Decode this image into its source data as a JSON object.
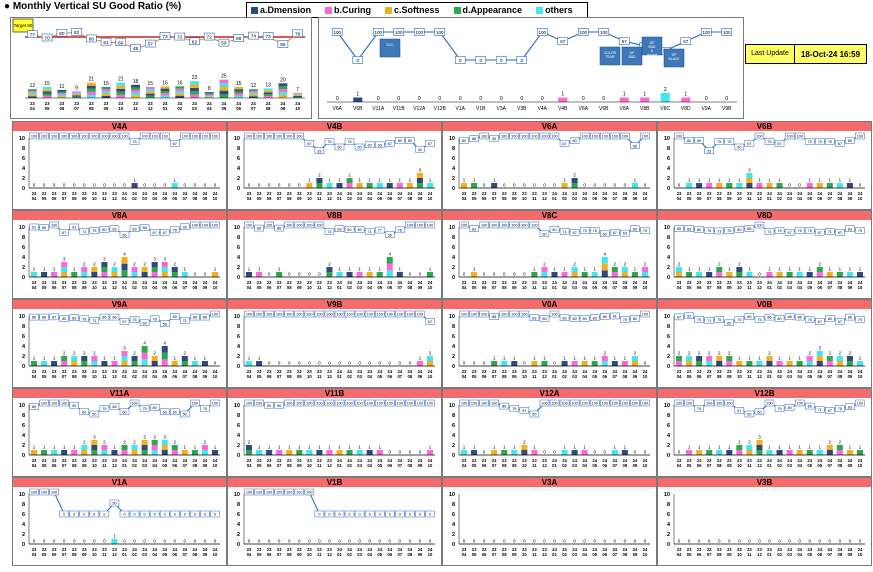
{
  "title": "Monthly Vertical SU Good Ratio (%)",
  "legend": [
    {
      "label": "a.Dmension",
      "color": "#2e4a7f"
    },
    {
      "label": "b.Curing",
      "color": "#ff66d9"
    },
    {
      "label": "c.Softness",
      "color": "#f2b01e"
    },
    {
      "label": "d.Appearance",
      "color": "#2aa84a"
    },
    {
      "label": "others",
      "color": "#3ee8ee"
    }
  ],
  "target_label": "Target 80",
  "badge": {
    "top": "24",
    "bottom": "10"
  },
  "last_update": {
    "label": "Last Update",
    "value": "18-Oct-24 16:59"
  },
  "colors": {
    "line": "#2468c8",
    "target": "#d02020",
    "header": "#f56b6b"
  },
  "chart_data": {
    "overall": {
      "type": "bar+line",
      "categories": [
        "23-04",
        "23-05",
        "23-06",
        "23-07",
        "23-08",
        "23-09",
        "23-10",
        "23-11",
        "23-12",
        "24-01",
        "24-02",
        "24-03",
        "24-04",
        "24-05",
        "24-06",
        "24-07",
        "24-08",
        "24-09",
        "24-10"
      ],
      "ratio": [
        77,
        70,
        80,
        82,
        68,
        61,
        60,
        48,
        57,
        73,
        72,
        62,
        72,
        59,
        69,
        74,
        73,
        56,
        79
      ],
      "ng_totals": [
        12,
        15,
        11,
        9,
        21,
        15,
        21,
        18,
        15,
        16,
        16,
        23,
        8,
        25,
        15,
        12,
        13,
        20,
        7
      ]
    },
    "current_month": {
      "type": "bar+line",
      "categories": [
        "V6A",
        "V6B",
        "V11A",
        "V11B",
        "V12A",
        "V12B",
        "V1A",
        "V1B",
        "V3A",
        "V3B",
        "V4A",
        "V4B",
        "V6A",
        "V6B",
        "V8A",
        "V8B",
        "V8C",
        "V8D",
        "V9A",
        "V9B"
      ],
      "ratio": [
        100,
        0,
        100,
        100,
        100,
        100,
        0,
        0,
        0,
        0,
        100,
        67,
        100,
        100,
        67,
        50,
        33,
        67,
        100,
        100
      ],
      "ng": [
        0,
        1,
        0,
        0,
        0,
        0,
        0,
        0,
        0,
        0,
        0,
        1,
        0,
        0,
        1,
        1,
        2,
        1,
        0,
        0
      ],
      "callouts": [
        "SCC",
        "COLOR TEAR",
        "DP BAD",
        "DP BAD & ground",
        "DP BLACK"
      ]
    },
    "months": [
      "23-04",
      "23-05",
      "23-06",
      "23-07",
      "23-08",
      "23-09",
      "23-10",
      "23-11",
      "23-12",
      "24-01",
      "24-02",
      "24-03",
      "24-04",
      "24-05",
      "24-06",
      "24-07",
      "24-08",
      "24-09",
      "24-10"
    ],
    "lines": [
      {
        "name": "V4A",
        "ymax": 10,
        "ratio": [
          100,
          100,
          100,
          100,
          100,
          100,
          100,
          100,
          100,
          100,
          75,
          100,
          100,
          100,
          67,
          100,
          100,
          100,
          100
        ],
        "ng": [
          0,
          0,
          0,
          0,
          0,
          0,
          0,
          0,
          0,
          0,
          1,
          0,
          0,
          0,
          1,
          0,
          0,
          0,
          0
        ]
      },
      {
        "name": "V4B",
        "ymax": 10,
        "ratio": [
          100,
          100,
          100,
          100,
          100,
          100,
          67,
          33,
          75,
          50,
          75,
          50,
          60,
          60,
          67,
          80,
          80,
          40,
          67
        ],
        "ng": [
          0,
          0,
          0,
          0,
          0,
          0,
          1,
          2,
          1,
          1,
          2,
          1,
          1,
          1,
          1,
          1,
          1,
          3,
          1
        ]
      },
      {
        "name": "V6A",
        "ymax": 10,
        "ratio": [
          80,
          88,
          100,
          90,
          100,
          100,
          100,
          100,
          100,
          100,
          67,
          80,
          100,
          100,
          100,
          100,
          100,
          56,
          100
        ],
        "ng": [
          1,
          1,
          0,
          1,
          0,
          0,
          0,
          0,
          0,
          0,
          1,
          2,
          0,
          0,
          0,
          0,
          0,
          1,
          0
        ]
      },
      {
        "name": "V6B",
        "ymax": 10,
        "ratio": [
          100,
          80,
          80,
          33,
          75,
          75,
          50,
          67,
          100,
          75,
          67,
          100,
          100,
          75,
          75,
          75,
          67,
          80,
          100
        ],
        "ng": [
          0,
          1,
          1,
          1,
          1,
          1,
          1,
          3,
          1,
          1,
          1,
          0,
          0,
          1,
          1,
          1,
          1,
          1,
          0
        ]
      },
      {
        "name": "V8A",
        "ymax": 10,
        "ratio": [
          91,
          88,
          100,
          67,
          91,
          71,
          75,
          80,
          83,
          56,
          83,
          88,
          67,
          67,
          78,
          92,
          100,
          100,
          100
        ],
        "ng": [
          1,
          1,
          1,
          3,
          1,
          2,
          2,
          3,
          2,
          4,
          2,
          2,
          3,
          3,
          2,
          1,
          0,
          0,
          1
        ]
      },
      {
        "name": "V8B",
        "ymax": 10,
        "ratio": [
          100,
          86,
          100,
          86,
          100,
          100,
          100,
          100,
          71,
          83,
          80,
          80,
          71,
          77,
          56,
          78,
          100,
          100,
          100
        ],
        "ng": [
          1,
          1,
          0,
          1,
          0,
          0,
          0,
          0,
          2,
          1,
          1,
          1,
          1,
          1,
          4,
          1,
          0,
          0,
          1
        ]
      },
      {
        "name": "V8C",
        "ymax": 10,
        "ratio": [
          100,
          83,
          100,
          100,
          100,
          100,
          100,
          100,
          60,
          80,
          71,
          67,
          75,
          75,
          60,
          67,
          63,
          83,
          75
        ],
        "ng": [
          0,
          1,
          0,
          0,
          0,
          0,
          0,
          1,
          2,
          1,
          1,
          2,
          1,
          1,
          4,
          2,
          2,
          1,
          2
        ]
      },
      {
        "name": "V8D",
        "ymax": 10,
        "ratio": [
          85,
          83,
          80,
          75,
          73,
          75,
          80,
          85,
          100,
          71,
          75,
          67,
          75,
          75,
          67,
          71,
          67,
          83,
          75
        ],
        "ng": [
          2,
          1,
          1,
          1,
          2,
          1,
          2,
          1,
          0,
          1,
          1,
          1,
          1,
          1,
          2,
          1,
          1,
          1,
          1
        ]
      },
      {
        "name": "V9A",
        "ymax": 10,
        "ratio": [
          86,
          86,
          87,
          80,
          83,
          78,
          71,
          86,
          86,
          67,
          75,
          60,
          78,
          56,
          89,
          71,
          86,
          86,
          100
        ],
        "ng": [
          1,
          1,
          1,
          2,
          2,
          2,
          2,
          1,
          1,
          3,
          2,
          4,
          2,
          4,
          1,
          2,
          1,
          1,
          0
        ]
      },
      {
        "name": "V9B",
        "ymax": 10,
        "ratio": [
          100,
          100,
          100,
          100,
          100,
          100,
          100,
          100,
          100,
          100,
          100,
          100,
          100,
          100,
          100,
          100,
          100,
          100,
          67
        ],
        "ng": [
          1,
          1,
          0,
          0,
          0,
          0,
          0,
          0,
          0,
          0,
          0,
          0,
          0,
          0,
          0,
          0,
          0,
          1,
          2
        ]
      },
      {
        "name": "V0A",
        "ymax": 10,
        "ratio": [
          100,
          100,
          100,
          88,
          100,
          100,
          100,
          83,
          80,
          100,
          83,
          80,
          80,
          83,
          89,
          91,
          75,
          80,
          100
        ],
        "ng": [
          0,
          0,
          0,
          1,
          1,
          1,
          0,
          1,
          1,
          0,
          1,
          1,
          1,
          1,
          2,
          1,
          1,
          2,
          0
        ]
      },
      {
        "name": "V0B",
        "ymax": 10,
        "ratio": [
          87,
          92,
          75,
          71,
          75,
          60,
          75,
          89,
          75,
          86,
          80,
          88,
          86,
          75,
          67,
          80,
          67,
          86,
          75
        ],
        "ng": [
          2,
          2,
          2,
          2,
          2,
          2,
          1,
          1,
          1,
          2,
          1,
          1,
          1,
          2,
          3,
          2,
          2,
          2,
          1
        ]
      },
      {
        "name": "V11A",
        "ymax": 10,
        "ratio": [
          85,
          100,
          100,
          100,
          90,
          60,
          50,
          75,
          85,
          60,
          100,
          75,
          80,
          60,
          60,
          50,
          100,
          75,
          100
        ],
        "ng": [
          1,
          1,
          1,
          1,
          1,
          2,
          3,
          2,
          1,
          2,
          2,
          3,
          3,
          3,
          2,
          1,
          1,
          2,
          1
        ]
      },
      {
        "name": "V11B",
        "ymax": 10,
        "ratio": [
          100,
          100,
          90,
          90,
          100,
          100,
          100,
          100,
          100,
          100,
          100,
          100,
          100,
          100,
          100,
          100,
          100,
          100,
          100
        ],
        "ng": [
          2,
          1,
          1,
          1,
          1,
          1,
          1,
          1,
          1,
          1,
          1,
          1,
          1,
          1,
          0,
          0,
          0,
          0,
          1
        ]
      },
      {
        "name": "V12A",
        "ymax": 10,
        "ratio": [
          100,
          100,
          100,
          100,
          86,
          75,
          67,
          50,
          100,
          100,
          100,
          100,
          100,
          100,
          100,
          100,
          100,
          100,
          100
        ],
        "ng": [
          1,
          1,
          0,
          1,
          1,
          1,
          2,
          1,
          0,
          0,
          1,
          1,
          1,
          0,
          0,
          1,
          1,
          0,
          0
        ]
      },
      {
        "name": "V12B",
        "ymax": 10,
        "ratio": [
          100,
          100,
          75,
          100,
          100,
          100,
          67,
          50,
          60,
          100,
          75,
          80,
          100,
          86,
          71,
          67,
          75,
          83,
          100
        ],
        "ng": [
          0,
          1,
          1,
          1,
          1,
          1,
          2,
          2,
          3,
          1,
          1,
          1,
          1,
          1,
          1,
          2,
          2,
          1,
          1
        ]
      },
      {
        "name": "V1A",
        "ymax": 10,
        "ratio": [
          100,
          100,
          100,
          0,
          0,
          0,
          0,
          0,
          50,
          0,
          0,
          0,
          0,
          0,
          0,
          0,
          0,
          0,
          0
        ],
        "ng": [
          0,
          0,
          0,
          0,
          0,
          0,
          0,
          0,
          1,
          0,
          0,
          0,
          0,
          0,
          0,
          0,
          0,
          0,
          0
        ]
      },
      {
        "name": "V1B",
        "ymax": 10,
        "ratio": [
          100,
          100,
          100,
          100,
          100,
          100,
          100,
          0,
          0,
          0,
          0,
          0,
          0,
          0,
          0,
          0,
          0,
          0,
          0
        ],
        "ng": [
          0,
          0,
          0,
          0,
          0,
          0,
          0,
          0,
          0,
          0,
          0,
          0,
          0,
          0,
          0,
          0,
          0,
          0,
          0
        ]
      },
      {
        "name": "V3A",
        "ymax": 10,
        "ratio": [],
        "ng": [
          0,
          0,
          0,
          0,
          0,
          0,
          0,
          0,
          0,
          0,
          0,
          0,
          0,
          0,
          0,
          0,
          0,
          0,
          0
        ]
      },
      {
        "name": "V3B",
        "ymax": 10,
        "ratio": [],
        "ng": [
          0,
          0,
          0,
          0,
          0,
          0,
          0,
          0,
          0,
          0,
          0,
          0,
          0,
          0,
          0,
          0,
          0,
          0,
          0
        ]
      }
    ]
  }
}
